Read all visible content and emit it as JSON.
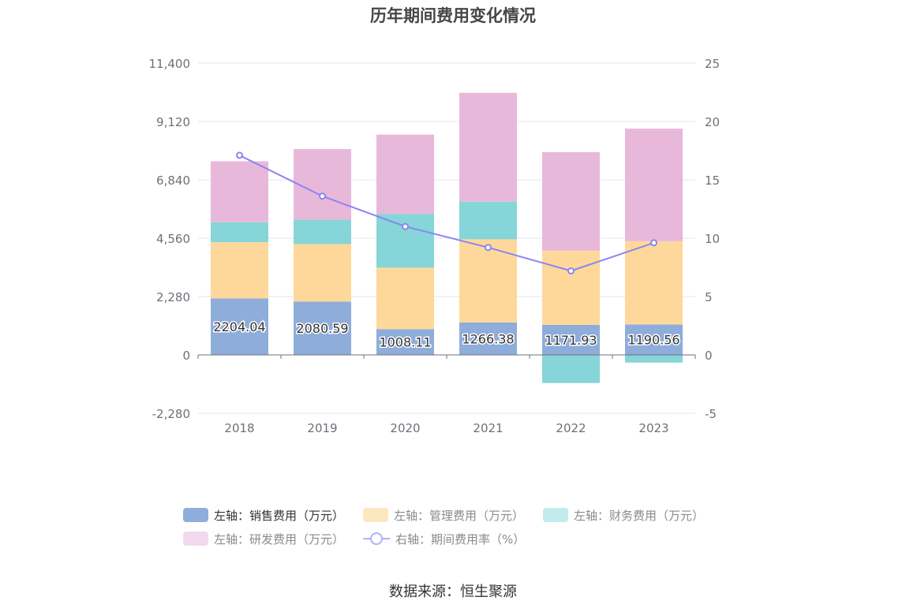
{
  "title": "历年期间费用变化情况",
  "source": "数据来源：恒生聚源",
  "legend": [
    {
      "label": "左轴：销售费用（万元）",
      "color": "#8eaddb",
      "kind": "bar",
      "active": true
    },
    {
      "label": "左轴：管理费用（万元）",
      "color": "#fde7bf",
      "kind": "bar",
      "active": false
    },
    {
      "label": "左轴：财务费用（万元）",
      "color": "#c2ebec",
      "kind": "bar",
      "active": false
    },
    {
      "label": "左轴：研发费用（万元）",
      "color": "#f2d9ee",
      "kind": "bar",
      "active": false
    },
    {
      "label": "右轴：期间费用率（%）",
      "color": "#8a85f0",
      "kind": "line",
      "active": false
    }
  ],
  "chart_data": {
    "type": "bar",
    "stacked": true,
    "title": "历年期间费用变化情况",
    "categories": [
      "2018",
      "2019",
      "2020",
      "2021",
      "2022",
      "2023"
    ],
    "left_axis": {
      "ticks": [
        "11,400",
        "9,120",
        "6,840",
        "4,560",
        "2,280",
        "0",
        "-2,280"
      ],
      "range": [
        -2280,
        11400
      ]
    },
    "right_axis": {
      "ticks": [
        "25",
        "20",
        "15",
        "10",
        "5",
        "0",
        "-5"
      ],
      "range": [
        -5,
        25
      ]
    },
    "series": [
      {
        "name": "左轴：销售费用（万元）",
        "axis": "left",
        "type": "bar",
        "color": "#8eaddb",
        "values": [
          2204.04,
          2080.59,
          1008.11,
          1266.38,
          1171.93,
          1190.56
        ],
        "labels": [
          "2204.04",
          "2080.59",
          "1008.11",
          "1266.38",
          "1171.93",
          "1190.56"
        ]
      },
      {
        "name": "左轴：管理费用（万元）",
        "axis": "left",
        "type": "bar",
        "color": "#fed89b",
        "values": [
          2200,
          2250,
          2400,
          3250,
          2900,
          3250
        ]
      },
      {
        "name": "左轴：财务费用（万元）",
        "axis": "left",
        "type": "bar",
        "color": "#86d5d8",
        "values": [
          780,
          950,
          2100,
          1470,
          -1100,
          -300
        ]
      },
      {
        "name": "左轴：研发费用（万元）",
        "axis": "left",
        "type": "bar",
        "color": "#e8b8da",
        "values": [
          2380,
          2760,
          3100,
          4250,
          3850,
          4400
        ]
      },
      {
        "name": "右轴：期间费用率（%）",
        "axis": "right",
        "type": "line",
        "color": "#8a85f0",
        "values": [
          17.1,
          13.6,
          11.0,
          9.2,
          7.2,
          9.6
        ]
      }
    ],
    "grid": true,
    "legend_position": "bottom"
  }
}
